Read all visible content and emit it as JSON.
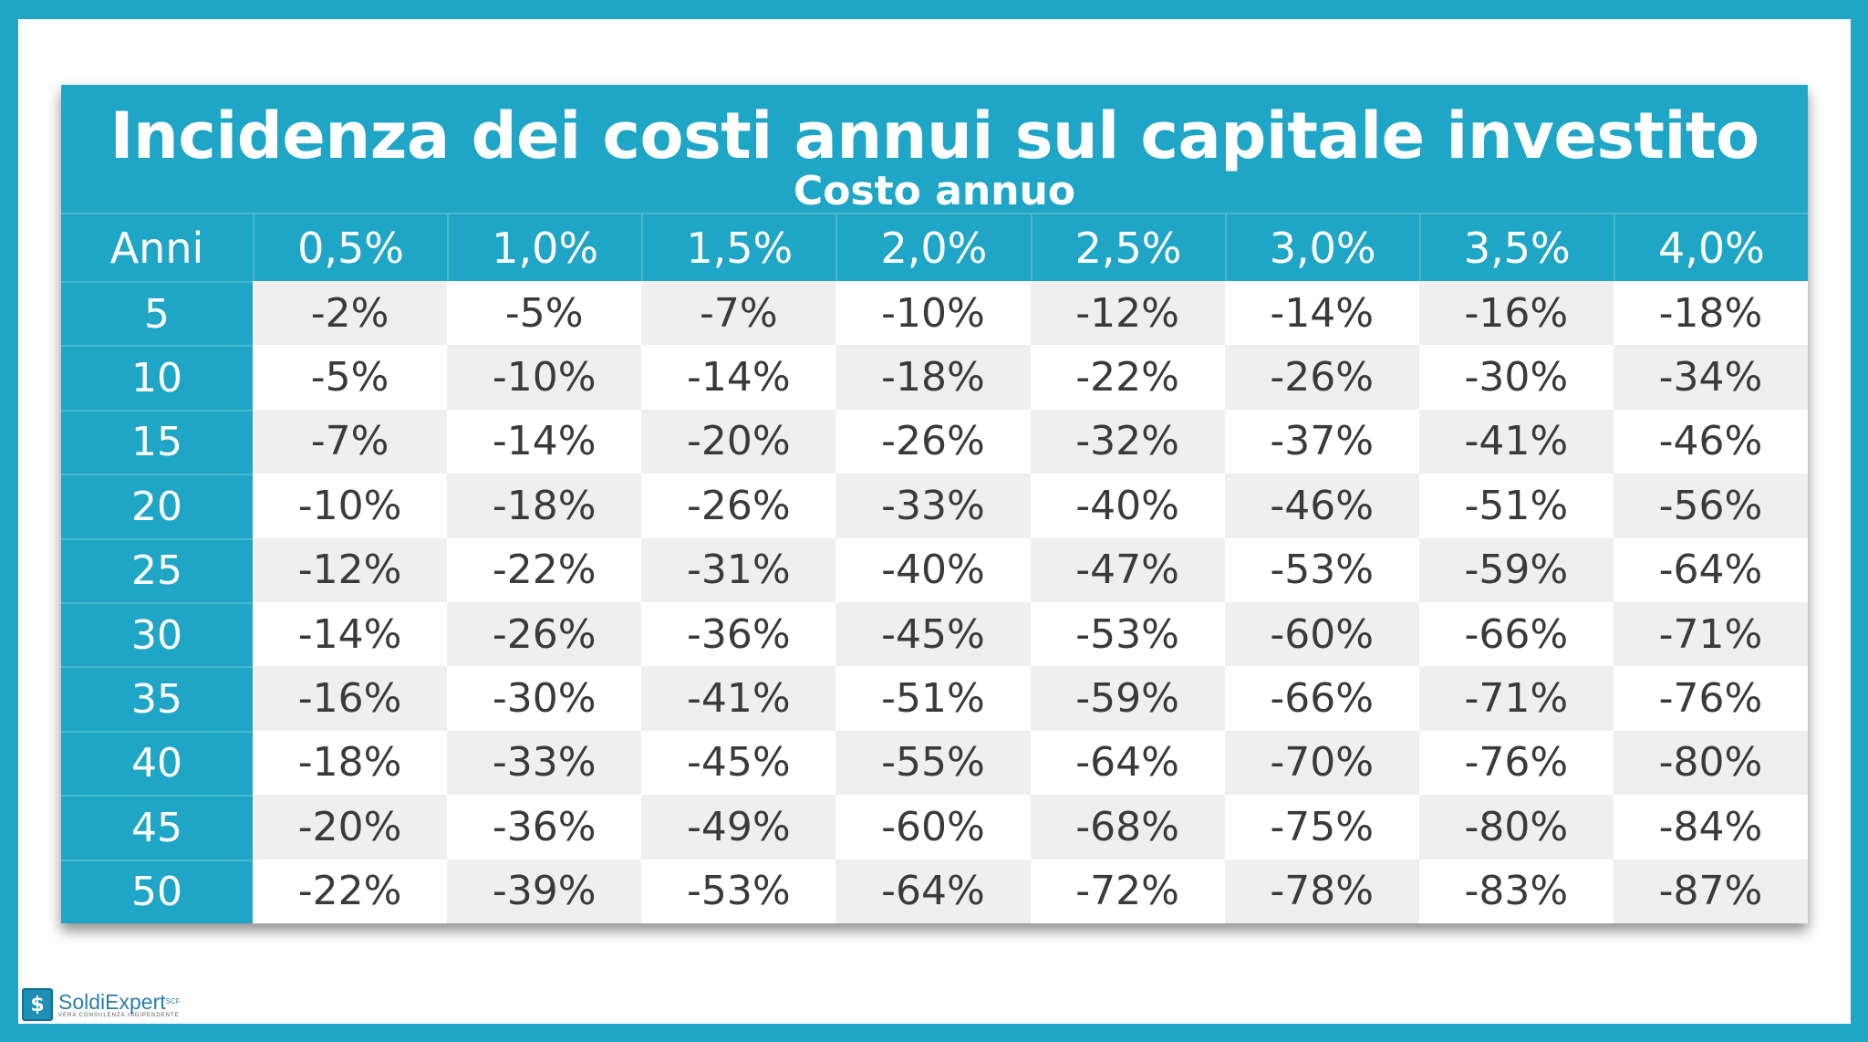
{
  "chart_data": {
    "type": "table",
    "title": "Incidenza dei costi annui sul capitale investito",
    "subtitle": "Costo annuo",
    "row_header": "Anni",
    "columns": [
      "0,5%",
      "1,0%",
      "1,5%",
      "2,0%",
      "2,5%",
      "3,0%",
      "3,5%",
      "4,0%"
    ],
    "rows": [
      {
        "year": "5",
        "values": [
          "-2%",
          "-5%",
          "-7%",
          "-10%",
          "-12%",
          "-14%",
          "-16%",
          "-18%"
        ]
      },
      {
        "year": "10",
        "values": [
          "-5%",
          "-10%",
          "-14%",
          "-18%",
          "-22%",
          "-26%",
          "-30%",
          "-34%"
        ]
      },
      {
        "year": "15",
        "values": [
          "-7%",
          "-14%",
          "-20%",
          "-26%",
          "-32%",
          "-37%",
          "-41%",
          "-46%"
        ]
      },
      {
        "year": "20",
        "values": [
          "-10%",
          "-18%",
          "-26%",
          "-33%",
          "-40%",
          "-46%",
          "-51%",
          "-56%"
        ]
      },
      {
        "year": "25",
        "values": [
          "-12%",
          "-22%",
          "-31%",
          "-40%",
          "-47%",
          "-53%",
          "-59%",
          "-64%"
        ]
      },
      {
        "year": "30",
        "values": [
          "-14%",
          "-26%",
          "-36%",
          "-45%",
          "-53%",
          "-60%",
          "-66%",
          "-71%"
        ]
      },
      {
        "year": "35",
        "values": [
          "-16%",
          "-30%",
          "-41%",
          "-51%",
          "-59%",
          "-66%",
          "-71%",
          "-76%"
        ]
      },
      {
        "year": "40",
        "values": [
          "-18%",
          "-33%",
          "-45%",
          "-55%",
          "-64%",
          "-70%",
          "-76%",
          "-80%"
        ]
      },
      {
        "year": "45",
        "values": [
          "-20%",
          "-36%",
          "-49%",
          "-60%",
          "-68%",
          "-75%",
          "-80%",
          "-84%"
        ]
      },
      {
        "year": "50",
        "values": [
          "-22%",
          "-39%",
          "-53%",
          "-64%",
          "-72%",
          "-78%",
          "-83%",
          "-87%"
        ]
      }
    ]
  },
  "logo": {
    "icon": "dollar-icon",
    "symbol": "$",
    "name": "SoldiExpert",
    "superscript": "SCF",
    "tagline": "VERA CONSULENZA INDIPENDENTE"
  },
  "colors": {
    "frame": "#1fa6c6",
    "header": "#1fa6c6",
    "cell_light": "#ffffff",
    "cell_dark": "#efefef",
    "text": "#3a3a3a"
  }
}
